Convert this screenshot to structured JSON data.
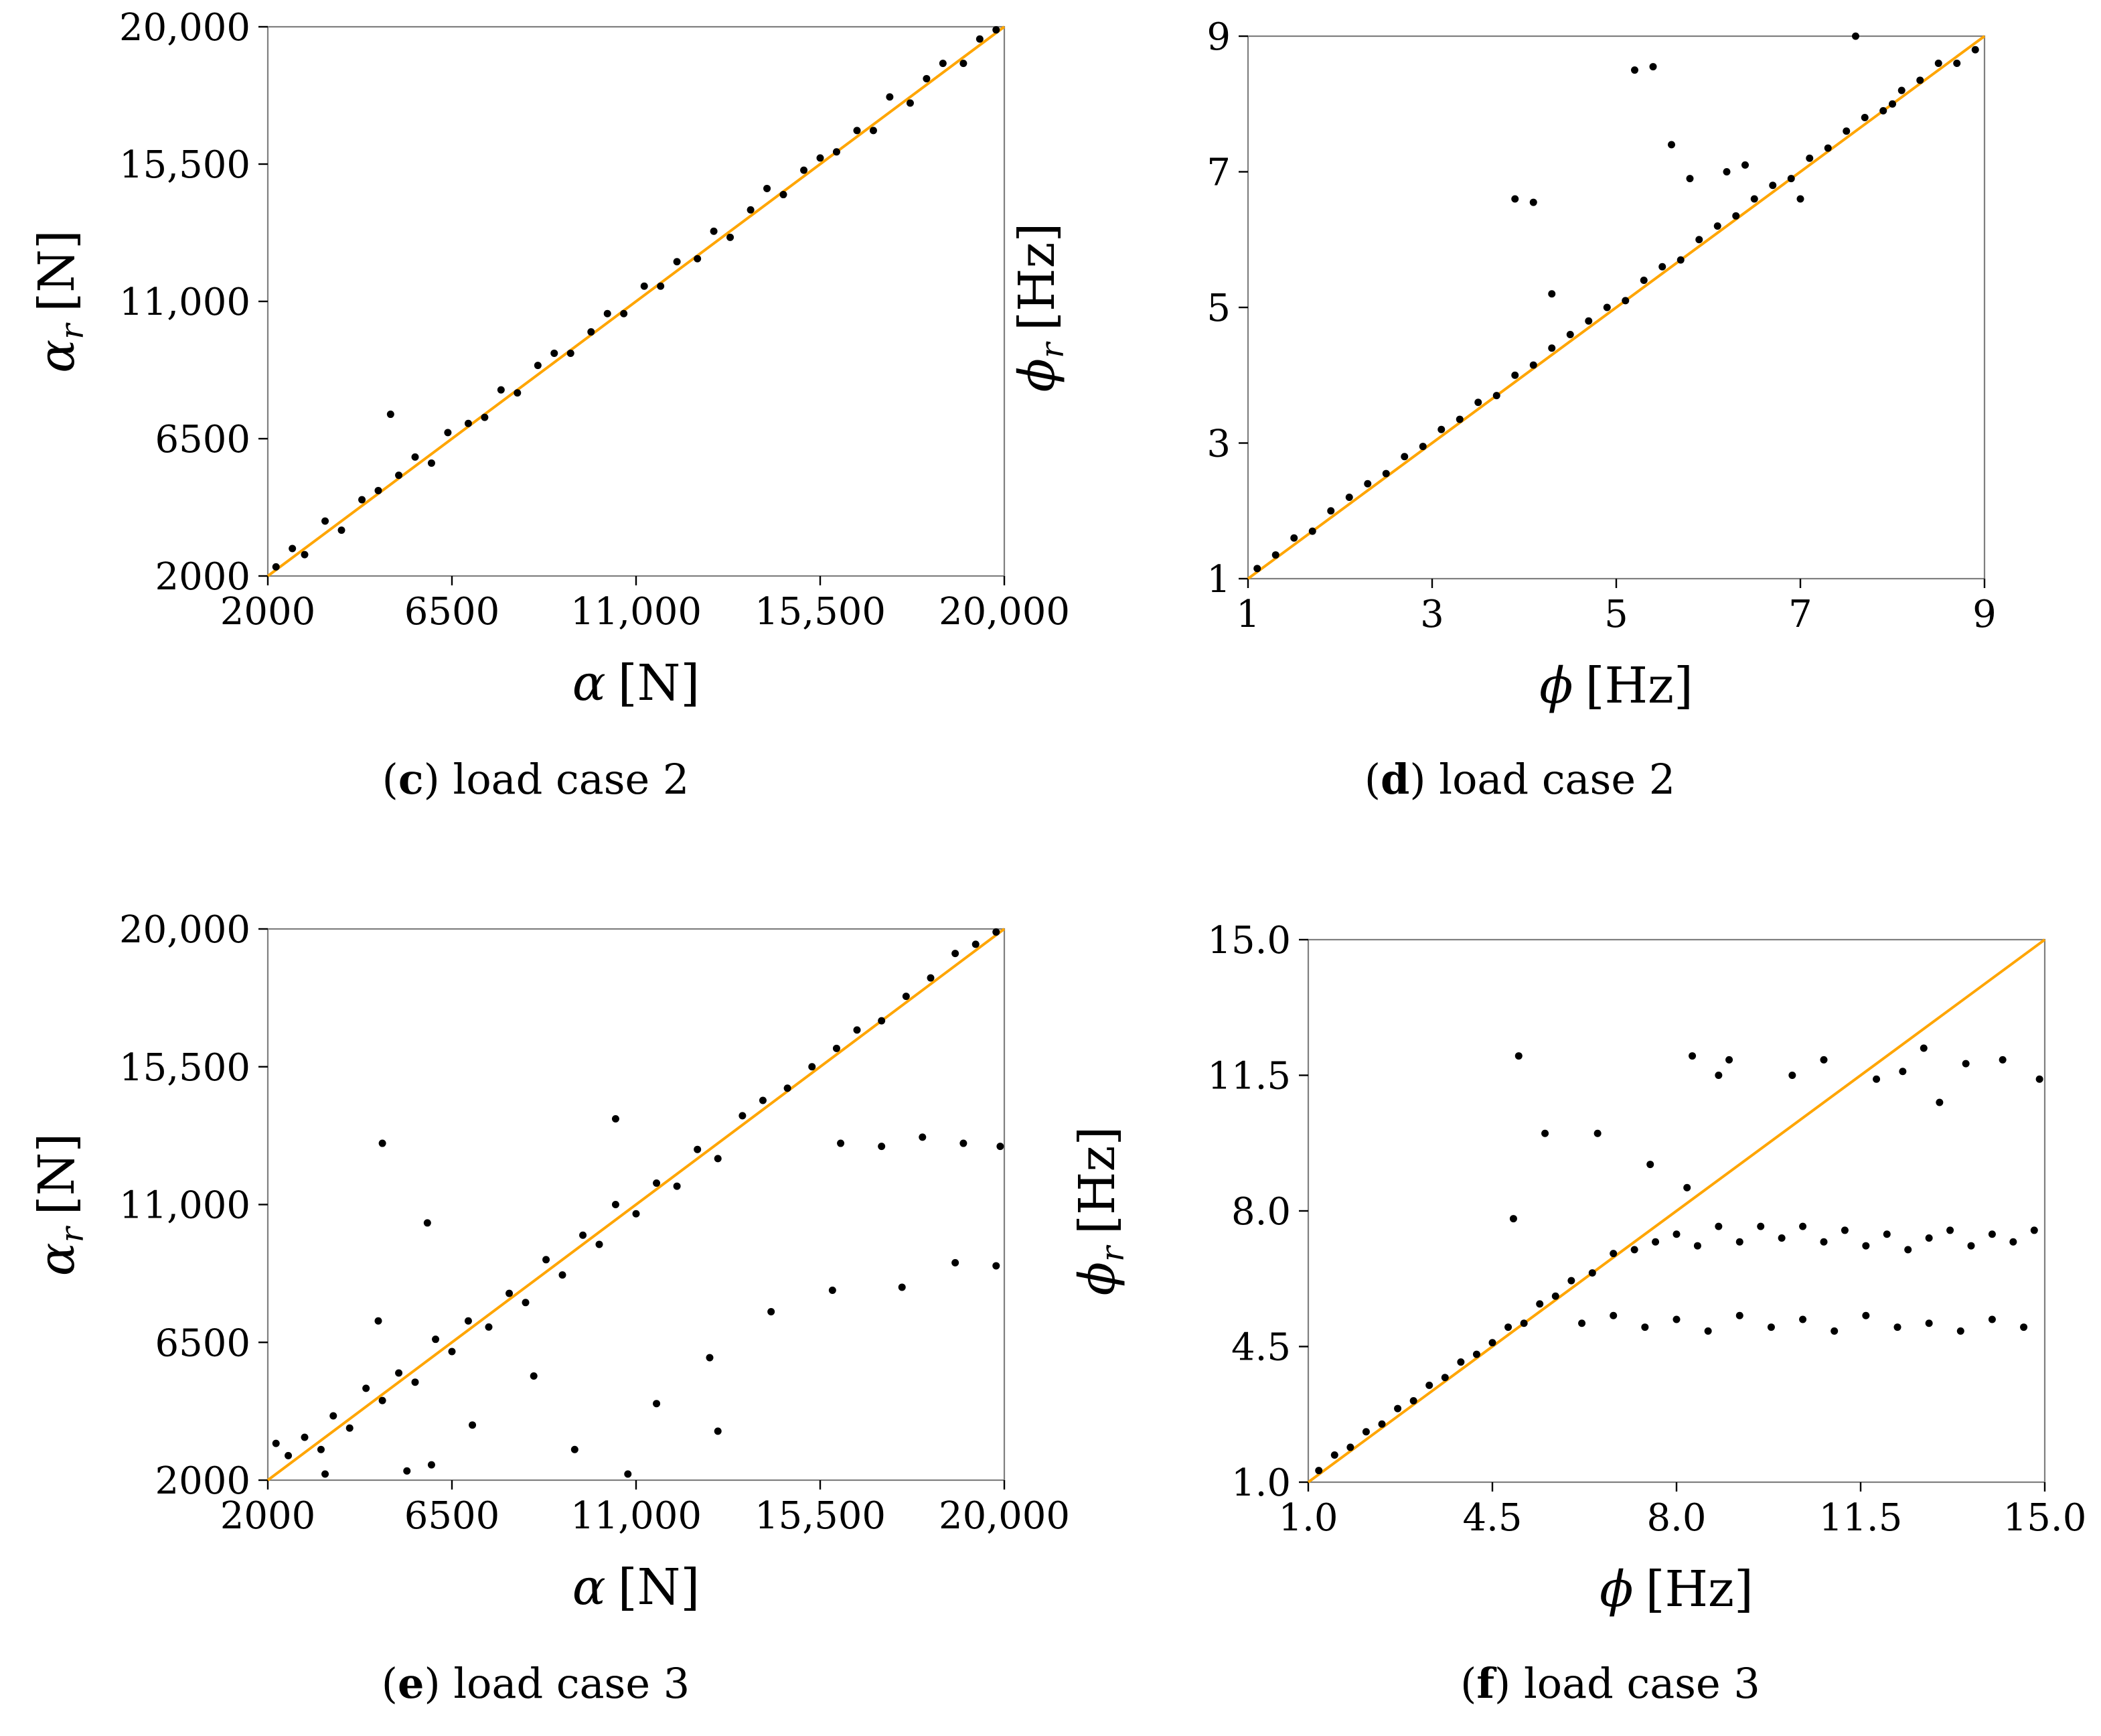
{
  "chart_data": [
    {
      "type": "scatter",
      "panel_letter": "c",
      "caption": "load case 2",
      "xlabel_symbol": "α",
      "xlabel_sub": "",
      "xlabel_unit": "[N]",
      "ylabel_symbol": "α",
      "ylabel_sub": "r",
      "ylabel_unit": "[N]",
      "xlim": [
        2000,
        20000
      ],
      "ylim": [
        2000,
        20000
      ],
      "xticks": [
        2000,
        6500,
        11000,
        15500,
        20000
      ],
      "xtick_labels": [
        "2000",
        "6500",
        "11,000",
        "15,500",
        "20,000"
      ],
      "yticks": [
        2000,
        6500,
        11000,
        15500,
        20000
      ],
      "ytick_labels": [
        "2000",
        "6500",
        "11,000",
        "15,500",
        "20,000"
      ],
      "reference_line": {
        "x": [
          2000,
          20000
        ],
        "y": [
          2000,
          20000
        ],
        "color": "#ffa500"
      },
      "point_color": "#000000",
      "points": [
        [
          2200,
          2300
        ],
        [
          2600,
          2900
        ],
        [
          2900,
          2700
        ],
        [
          3400,
          3800
        ],
        [
          3800,
          3500
        ],
        [
          4300,
          4500
        ],
        [
          4700,
          4800
        ],
        [
          5000,
          7300
        ],
        [
          5200,
          5300
        ],
        [
          5600,
          5900
        ],
        [
          6000,
          5700
        ],
        [
          6400,
          6700
        ],
        [
          6900,
          7000
        ],
        [
          7300,
          7200
        ],
        [
          7700,
          8100
        ],
        [
          8100,
          8000
        ],
        [
          8600,
          8900
        ],
        [
          9000,
          9300
        ],
        [
          9400,
          9300
        ],
        [
          9900,
          10000
        ],
        [
          10300,
          10600
        ],
        [
          10700,
          10600
        ],
        [
          11200,
          11500
        ],
        [
          11600,
          11500
        ],
        [
          12000,
          12300
        ],
        [
          12500,
          12400
        ],
        [
          12900,
          13300
        ],
        [
          13300,
          13100
        ],
        [
          13800,
          14000
        ],
        [
          14200,
          14700
        ],
        [
          14600,
          14500
        ],
        [
          15100,
          15300
        ],
        [
          15500,
          15700
        ],
        [
          15900,
          15900
        ],
        [
          16400,
          16600
        ],
        [
          16800,
          16600
        ],
        [
          17200,
          17700
        ],
        [
          17700,
          17500
        ],
        [
          18100,
          18300
        ],
        [
          18500,
          18800
        ],
        [
          19000,
          18800
        ],
        [
          19400,
          19600
        ],
        [
          19800,
          19900
        ]
      ]
    },
    {
      "type": "scatter",
      "panel_letter": "d",
      "caption": "load case 2",
      "xlabel_symbol": "ϕ",
      "xlabel_sub": "",
      "xlabel_unit": "[Hz]",
      "ylabel_symbol": "ϕ",
      "ylabel_sub": "r",
      "ylabel_unit": "[Hz]",
      "xlim": [
        1,
        9
      ],
      "ylim": [
        1,
        9
      ],
      "xticks": [
        1,
        3,
        5,
        7,
        9
      ],
      "xtick_labels": [
        "1",
        "3",
        "5",
        "7",
        "9"
      ],
      "yticks": [
        1,
        3,
        5,
        7,
        9
      ],
      "ytick_labels": [
        "1",
        "3",
        "5",
        "7",
        "9"
      ],
      "reference_line": {
        "x": [
          1,
          9
        ],
        "y": [
          1,
          9
        ],
        "color": "#ffa500"
      },
      "point_color": "#000000",
      "points": [
        [
          1.1,
          1.15
        ],
        [
          1.3,
          1.35
        ],
        [
          1.5,
          1.6
        ],
        [
          1.7,
          1.7
        ],
        [
          1.9,
          2.0
        ],
        [
          2.1,
          2.2
        ],
        [
          2.3,
          2.4
        ],
        [
          2.5,
          2.55
        ],
        [
          2.7,
          2.8
        ],
        [
          2.9,
          2.95
        ],
        [
          3.1,
          3.2
        ],
        [
          3.3,
          3.35
        ],
        [
          3.5,
          3.6
        ],
        [
          3.7,
          3.7
        ],
        [
          3.9,
          4.0
        ],
        [
          4.1,
          4.15
        ],
        [
          4.3,
          4.4
        ],
        [
          4.5,
          4.6
        ],
        [
          4.7,
          4.8
        ],
        [
          4.9,
          5.0
        ],
        [
          5.1,
          5.1
        ],
        [
          5.3,
          5.4
        ],
        [
          5.5,
          5.6
        ],
        [
          5.7,
          5.7
        ],
        [
          5.9,
          6.0
        ],
        [
          6.1,
          6.2
        ],
        [
          6.3,
          6.35
        ],
        [
          6.5,
          6.6
        ],
        [
          6.7,
          6.8
        ],
        [
          6.9,
          6.9
        ],
        [
          7.1,
          7.2
        ],
        [
          7.3,
          7.35
        ],
        [
          7.5,
          7.6
        ],
        [
          7.7,
          7.8
        ],
        [
          7.9,
          7.9
        ],
        [
          8.1,
          8.2
        ],
        [
          8.3,
          8.35
        ],
        [
          8.5,
          8.6
        ],
        [
          8.7,
          8.6
        ],
        [
          8.9,
          8.8
        ],
        [
          3.9,
          6.6
        ],
        [
          4.1,
          6.55
        ],
        [
          4.3,
          5.2
        ],
        [
          5.2,
          8.5
        ],
        [
          5.4,
          8.55
        ],
        [
          5.6,
          7.4
        ],
        [
          5.8,
          6.9
        ],
        [
          6.2,
          7.0
        ],
        [
          6.4,
          7.1
        ],
        [
          7.0,
          6.6
        ],
        [
          7.6,
          9.0
        ],
        [
          8.0,
          8.0
        ]
      ]
    },
    {
      "type": "scatter",
      "panel_letter": "e",
      "caption": "load case 3",
      "xlabel_symbol": "α",
      "xlabel_sub": "",
      "xlabel_unit": "[N]",
      "ylabel_symbol": "α",
      "ylabel_sub": "r",
      "ylabel_unit": "[N]",
      "xlim": [
        2000,
        20000
      ],
      "ylim": [
        2000,
        20000
      ],
      "xticks": [
        2000,
        6500,
        11000,
        15500,
        20000
      ],
      "xtick_labels": [
        "2000",
        "6500",
        "11,000",
        "15,500",
        "20,000"
      ],
      "yticks": [
        2000,
        6500,
        11000,
        15500,
        20000
      ],
      "ytick_labels": [
        "2000",
        "6500",
        "11,000",
        "15,500",
        "20,000"
      ],
      "reference_line": {
        "x": [
          2000,
          20000
        ],
        "y": [
          2000,
          20000
        ],
        "color": "#ffa500"
      },
      "point_color": "#000000",
      "points": [
        [
          2200,
          3200
        ],
        [
          2500,
          2800
        ],
        [
          2900,
          3400
        ],
        [
          3300,
          3000
        ],
        [
          3600,
          4100
        ],
        [
          4000,
          3700
        ],
        [
          4400,
          5000
        ],
        [
          4800,
          4600
        ],
        [
          5200,
          5500
        ],
        [
          5600,
          5200
        ],
        [
          6100,
          6600
        ],
        [
          6500,
          6200
        ],
        [
          6900,
          7200
        ],
        [
          7400,
          7000
        ],
        [
          7900,
          8100
        ],
        [
          8300,
          7800
        ],
        [
          8800,
          9200
        ],
        [
          9200,
          8700
        ],
        [
          9700,
          10000
        ],
        [
          10100,
          9700
        ],
        [
          10500,
          11000
        ],
        [
          11000,
          10700
        ],
        [
          11500,
          11700
        ],
        [
          12000,
          11600
        ],
        [
          12500,
          12800
        ],
        [
          13000,
          12500
        ],
        [
          13600,
          13900
        ],
        [
          14100,
          14400
        ],
        [
          14700,
          14800
        ],
        [
          15300,
          15500
        ],
        [
          15900,
          16100
        ],
        [
          16400,
          16700
        ],
        [
          17000,
          17000
        ],
        [
          17600,
          17800
        ],
        [
          18200,
          18400
        ],
        [
          18800,
          19200
        ],
        [
          19300,
          19500
        ],
        [
          19800,
          19900
        ],
        [
          4800,
          13000
        ],
        [
          5900,
          10400
        ],
        [
          10500,
          13800
        ],
        [
          16000,
          13000
        ],
        [
          17000,
          12900
        ],
        [
          18000,
          13200
        ],
        [
          19000,
          13000
        ],
        [
          19900,
          12900
        ],
        [
          12800,
          6000
        ],
        [
          14300,
          7500
        ],
        [
          15800,
          8200
        ],
        [
          17500,
          8300
        ],
        [
          18800,
          9100
        ],
        [
          19800,
          9000
        ],
        [
          9500,
          3000
        ],
        [
          10800,
          2200
        ],
        [
          11500,
          4500
        ],
        [
          13000,
          3600
        ],
        [
          7000,
          3800
        ],
        [
          6000,
          2500
        ],
        [
          8500,
          5400
        ],
        [
          5400,
          2300
        ],
        [
          3400,
          2200
        ],
        [
          4700,
          7200
        ]
      ]
    },
    {
      "type": "scatter",
      "panel_letter": "f",
      "caption": "load case 3",
      "xlabel_symbol": "ϕ",
      "xlabel_sub": "",
      "xlabel_unit": "[Hz]",
      "ylabel_symbol": "ϕ",
      "ylabel_sub": "r",
      "ylabel_unit": "[Hz]",
      "xlim": [
        1.0,
        15.0
      ],
      "ylim": [
        1.0,
        15.0
      ],
      "xticks": [
        1.0,
        4.5,
        8.0,
        11.5,
        15.0
      ],
      "xtick_labels": [
        "1.0",
        "4.5",
        "8.0",
        "11.5",
        "15.0"
      ],
      "yticks": [
        1.0,
        4.5,
        8.0,
        11.5,
        15.0
      ],
      "ytick_labels": [
        "1.0",
        "4.5",
        "8.0",
        "11.5",
        "15.0"
      ],
      "reference_line": {
        "x": [
          1.0,
          15.0
        ],
        "y": [
          1.0,
          15.0
        ],
        "color": "#ffa500"
      },
      "point_color": "#000000",
      "points": [
        [
          1.2,
          1.3
        ],
        [
          1.5,
          1.7
        ],
        [
          1.8,
          1.9
        ],
        [
          2.1,
          2.3
        ],
        [
          2.4,
          2.5
        ],
        [
          2.7,
          2.9
        ],
        [
          3.0,
          3.1
        ],
        [
          3.3,
          3.5
        ],
        [
          3.6,
          3.7
        ],
        [
          3.9,
          4.1
        ],
        [
          4.2,
          4.3
        ],
        [
          4.5,
          4.6
        ],
        [
          4.8,
          5.0
        ],
        [
          5.1,
          5.1
        ],
        [
          5.4,
          5.6
        ],
        [
          5.7,
          5.8
        ],
        [
          6.0,
          6.2
        ],
        [
          6.4,
          6.4
        ],
        [
          6.8,
          6.9
        ],
        [
          7.2,
          7.0
        ],
        [
          7.6,
          7.2
        ],
        [
          8.0,
          7.4
        ],
        [
          8.4,
          7.1
        ],
        [
          8.8,
          7.6
        ],
        [
          9.2,
          7.2
        ],
        [
          9.6,
          7.6
        ],
        [
          10.0,
          7.3
        ],
        [
          10.4,
          7.6
        ],
        [
          10.8,
          7.2
        ],
        [
          11.2,
          7.5
        ],
        [
          11.6,
          7.1
        ],
        [
          12.0,
          7.4
        ],
        [
          12.4,
          7.0
        ],
        [
          12.8,
          7.3
        ],
        [
          13.2,
          7.5
        ],
        [
          13.6,
          7.1
        ],
        [
          14.0,
          7.4
        ],
        [
          14.4,
          7.2
        ],
        [
          14.8,
          7.5
        ],
        [
          6.2,
          5.1
        ],
        [
          6.8,
          5.3
        ],
        [
          7.4,
          5.0
        ],
        [
          8.0,
          5.2
        ],
        [
          8.6,
          4.9
        ],
        [
          9.2,
          5.3
        ],
        [
          9.8,
          5.0
        ],
        [
          10.4,
          5.2
        ],
        [
          11.0,
          4.9
        ],
        [
          11.6,
          5.3
        ],
        [
          12.2,
          5.0
        ],
        [
          12.8,
          5.1
        ],
        [
          13.4,
          4.9
        ],
        [
          14.0,
          5.2
        ],
        [
          14.6,
          5.0
        ],
        [
          5.0,
          12.0
        ],
        [
          5.5,
          10.0
        ],
        [
          6.5,
          10.0
        ],
        [
          8.3,
          12.0
        ],
        [
          8.8,
          11.5
        ],
        [
          9.0,
          11.9
        ],
        [
          10.2,
          11.5
        ],
        [
          10.8,
          11.9
        ],
        [
          11.8,
          11.4
        ],
        [
          12.3,
          11.6
        ],
        [
          12.7,
          12.2
        ],
        [
          13.0,
          10.8
        ],
        [
          13.5,
          11.8
        ],
        [
          14.2,
          11.9
        ],
        [
          14.9,
          11.4
        ],
        [
          7.5,
          9.2
        ],
        [
          8.2,
          8.6
        ],
        [
          4.9,
          7.8
        ]
      ]
    }
  ]
}
